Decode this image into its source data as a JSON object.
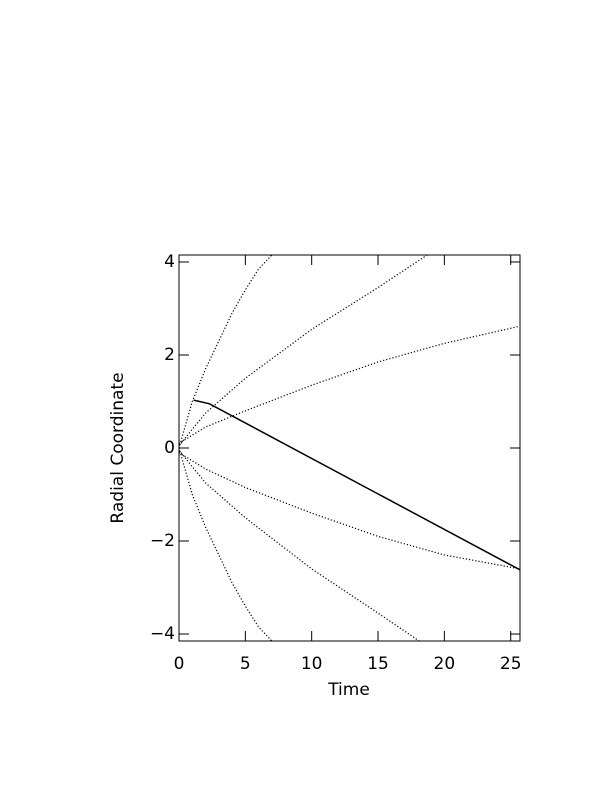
{
  "chart_data": {
    "type": "line",
    "x_label": "Time",
    "y_label": "Radial Coordinate",
    "xlim": [
      0,
      25.7
    ],
    "ylim": [
      -4.15,
      4.15
    ],
    "xticks": [
      0,
      5,
      10,
      15,
      20,
      25
    ],
    "yticks": [
      {
        "value": -4,
        "label": "−4"
      },
      {
        "value": -2,
        "label": "−2"
      },
      0,
      2,
      4
    ],
    "series": [
      {
        "color": "#000000",
        "style": "solid",
        "x": [
          1.1,
          2.3,
          25.7
        ],
        "values": [
          1.03,
          0.95,
          -2.62
        ]
      },
      {
        "color": "#000000",
        "style": "dotted",
        "x": [
          0,
          1,
          2,
          3,
          4,
          5,
          6,
          7
        ],
        "values": [
          0,
          1.0,
          1.7,
          2.3,
          2.9,
          3.4,
          3.85,
          4.15
        ]
      },
      {
        "color": "#000000",
        "style": "dotted",
        "x": [
          0,
          2,
          5,
          10,
          15,
          18.7
        ],
        "values": [
          0.05,
          0.75,
          1.5,
          2.55,
          3.45,
          4.15
        ]
      },
      {
        "color": "#000000",
        "style": "dotted",
        "x": [
          0,
          2,
          5,
          10,
          15,
          20,
          25.7
        ],
        "values": [
          0.1,
          0.45,
          0.8,
          1.35,
          1.85,
          2.25,
          2.62
        ]
      },
      {
        "color": "#000000",
        "style": "dotted",
        "x": [
          0,
          2,
          5,
          10,
          15,
          20,
          25.7
        ],
        "values": [
          -0.1,
          -0.45,
          -0.85,
          -1.4,
          -1.9,
          -2.3,
          -2.6
        ]
      },
      {
        "color": "#000000",
        "style": "dotted",
        "x": [
          0,
          2,
          5,
          10,
          15,
          18.1
        ],
        "values": [
          -0.05,
          -0.75,
          -1.5,
          -2.6,
          -3.55,
          -4.15
        ]
      },
      {
        "color": "#000000",
        "style": "dotted",
        "x": [
          0,
          1,
          2,
          3,
          4,
          5,
          6,
          7
        ],
        "values": [
          0,
          -1.0,
          -1.7,
          -2.3,
          -2.9,
          -3.4,
          -3.85,
          -4.15
        ]
      }
    ]
  }
}
